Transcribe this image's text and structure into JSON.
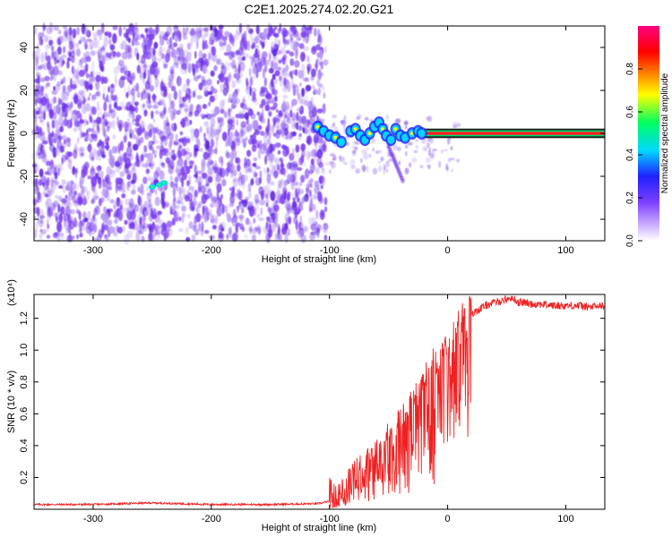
{
  "title": "C2E1.2025.274.02.20.G21",
  "chart_data": [
    {
      "type": "heatmap",
      "description_kind": "spectrogram",
      "xlabel": "Height of straight line (km)",
      "ylabel": "Frequency (Hz)",
      "xlim": [
        -350,
        133
      ],
      "ylim": [
        -50,
        50
      ],
      "x_ticks": [
        -300,
        -200,
        -100,
        0,
        100
      ],
      "y_ticks": [
        -40,
        -20,
        0,
        20,
        40
      ],
      "colorbar": {
        "label": "Normalized spectral amplitude",
        "range": [
          0,
          1
        ],
        "ticks": [
          "0.0",
          "0.2",
          "0.4",
          "0.6",
          "0.8"
        ],
        "colormap": [
          "#ffffff",
          "#7b3fff",
          "#2020ff",
          "#00d8ff",
          "#00ff60",
          "#ffff00",
          "#ff8000",
          "#ff0000",
          "#ff0080"
        ]
      },
      "noise_region_x": [
        -350,
        -103
      ],
      "signal_track": [
        {
          "x": -255,
          "y": -26
        },
        {
          "x": -242,
          "y": -24
        },
        {
          "x": -110,
          "y": 2
        },
        {
          "x": -100,
          "y": -1
        },
        {
          "x": -90,
          "y": -4
        },
        {
          "x": -80,
          "y": 0
        },
        {
          "x": -70,
          "y": -2
        },
        {
          "x": -60,
          "y": 2
        },
        {
          "x": -50,
          "y": 0
        },
        {
          "x": -40,
          "y": -1
        },
        {
          "x": -30,
          "y": 0
        },
        {
          "x": -20,
          "y": 0
        },
        {
          "x": 0,
          "y": 0
        },
        {
          "x": 50,
          "y": 0
        },
        {
          "x": 133,
          "y": 0
        }
      ]
    },
    {
      "type": "line",
      "xlabel": "Height of straight line (km)",
      "ylabel": "SNR (10 * v/v)",
      "y_multiplier": "(x10⁴)",
      "xlim": [
        -350,
        133
      ],
      "ylim": [
        0,
        1.35
      ],
      "x_ticks": [
        -300,
        -200,
        -100,
        0,
        100
      ],
      "y_ticks": [
        0.2,
        0.4,
        0.6,
        0.8,
        1.0,
        1.2
      ],
      "series": [
        {
          "color": "#ee2222",
          "x": [
            -350,
            -300,
            -250,
            -200,
            -150,
            -110,
            -100,
            -90,
            -80,
            -75,
            -70,
            -65,
            -60,
            -55,
            -50,
            -45,
            -40,
            -35,
            -30,
            -25,
            -20,
            -15,
            -10,
            -5,
            0,
            5,
            10,
            15,
            20,
            25,
            30,
            35,
            40,
            45,
            50,
            55,
            60,
            65,
            70,
            80,
            90,
            100,
            110,
            120,
            133
          ],
          "y": [
            0.03,
            0.03,
            0.04,
            0.03,
            0.03,
            0.035,
            0.05,
            0.08,
            0.15,
            0.2,
            0.22,
            0.25,
            0.3,
            0.35,
            0.4,
            0.45,
            0.5,
            0.55,
            0.62,
            0.68,
            0.75,
            0.82,
            0.9,
            0.95,
            0.98,
            1.05,
            1.12,
            1.18,
            1.22,
            1.25,
            1.27,
            1.29,
            1.3,
            1.31,
            1.32,
            1.33,
            1.3,
            1.3,
            1.29,
            1.29,
            1.28,
            1.28,
            1.28,
            1.27,
            1.28
          ]
        }
      ]
    }
  ]
}
